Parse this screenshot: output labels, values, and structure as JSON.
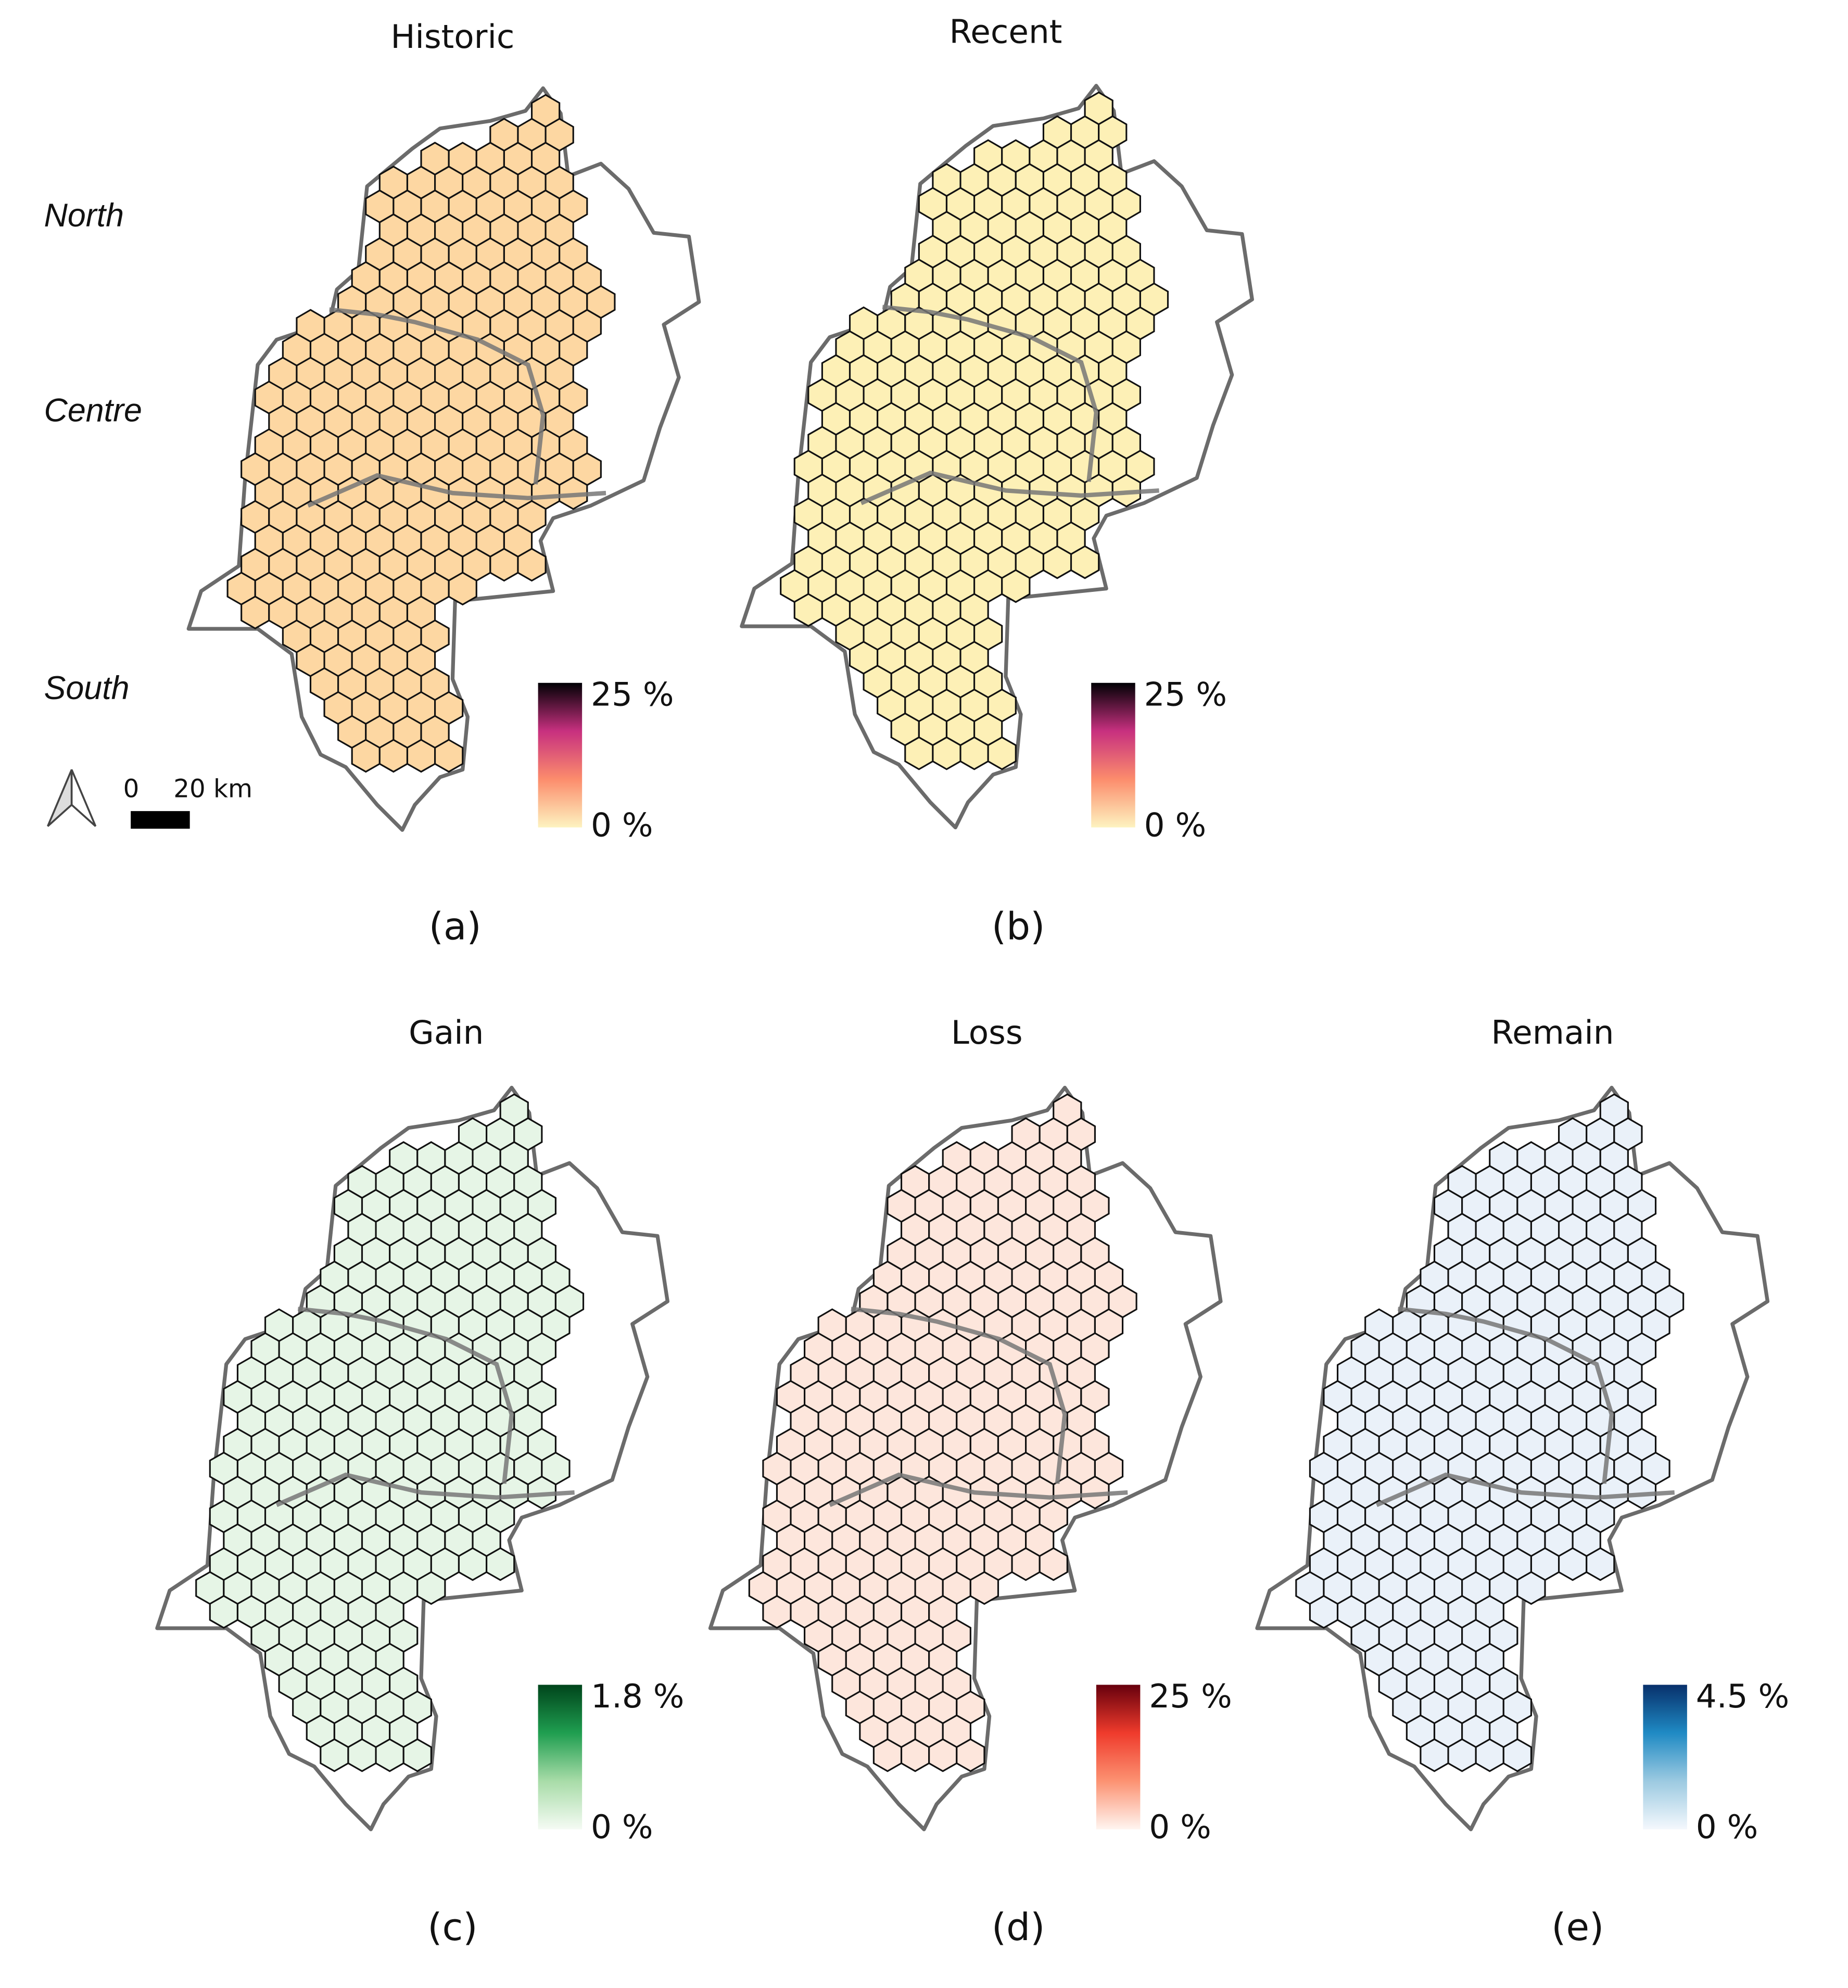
{
  "panels": [
    {
      "title": "Historic",
      "label": "(a)",
      "legend": {
        "max": "25 %",
        "min": "0 %",
        "colors": [
          "#fdf3c0",
          "#fc8c6c",
          "#c7307f",
          "#000004"
        ]
      }
    },
    {
      "title": "Recent",
      "label": "(b)",
      "legend": {
        "max": "25 %",
        "min": "0 %",
        "colors": [
          "#fdf3c0",
          "#fc8c6c",
          "#c7307f",
          "#000004"
        ]
      }
    },
    {
      "title": "Gain",
      "label": "(c)",
      "legend": {
        "max": "1.8 %",
        "min": "0 %",
        "colors": [
          "#f5fbf4",
          "#a8dca8",
          "#1f9e50",
          "#00441b"
        ]
      }
    },
    {
      "title": "Loss",
      "label": "(d)",
      "legend": {
        "max": "25 %",
        "min": "0 %",
        "colors": [
          "#fff5f0",
          "#fc9272",
          "#ef3b2c",
          "#67000d"
        ]
      }
    },
    {
      "title": "Remain",
      "label": "(e)",
      "legend": {
        "max": "4.5 %",
        "min": "0 %",
        "colors": [
          "#f4f8fd",
          "#9ccae1",
          "#1f8ac4",
          "#08306b"
        ]
      }
    }
  ],
  "regions": [
    "North",
    "Centre",
    "South"
  ],
  "scale_bar": {
    "start": "0",
    "end": "20 km"
  }
}
